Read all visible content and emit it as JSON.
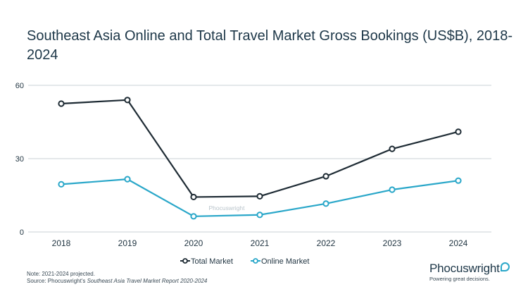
{
  "title": "Southeast Asia Online and Total Travel Market Gross Bookings (US$B), 2018-2024",
  "watermark": "Phocuswright",
  "notes": {
    "line1": "Note: 2021-2024 projected.",
    "source_prefix": "Source: Phocuswright's ",
    "source_title": "Southeast Asia Travel Market Report 2020-2024"
  },
  "brand": {
    "name": "Phocuswright",
    "tagline": "Powering great decisions."
  },
  "colors": {
    "total": "#1e2b34",
    "online": "#2aa7c9",
    "grid": "#c8d0d6",
    "axis_text": "#1f3340"
  },
  "chart_data": {
    "type": "line",
    "categories": [
      "2018",
      "2019",
      "2020",
      "2021",
      "2022",
      "2023",
      "2024"
    ],
    "series": [
      {
        "name": "Total Market",
        "values": [
          52.5,
          54,
          14.3,
          14.6,
          22.8,
          34,
          41
        ]
      },
      {
        "name": "Online Market",
        "values": [
          19.5,
          21.6,
          6.4,
          7,
          11.6,
          17.3,
          21
        ]
      }
    ],
    "yticks": [
      0,
      30,
      60
    ],
    "ylim": [
      0,
      60
    ],
    "grid": true,
    "legend": "bottom-center"
  }
}
